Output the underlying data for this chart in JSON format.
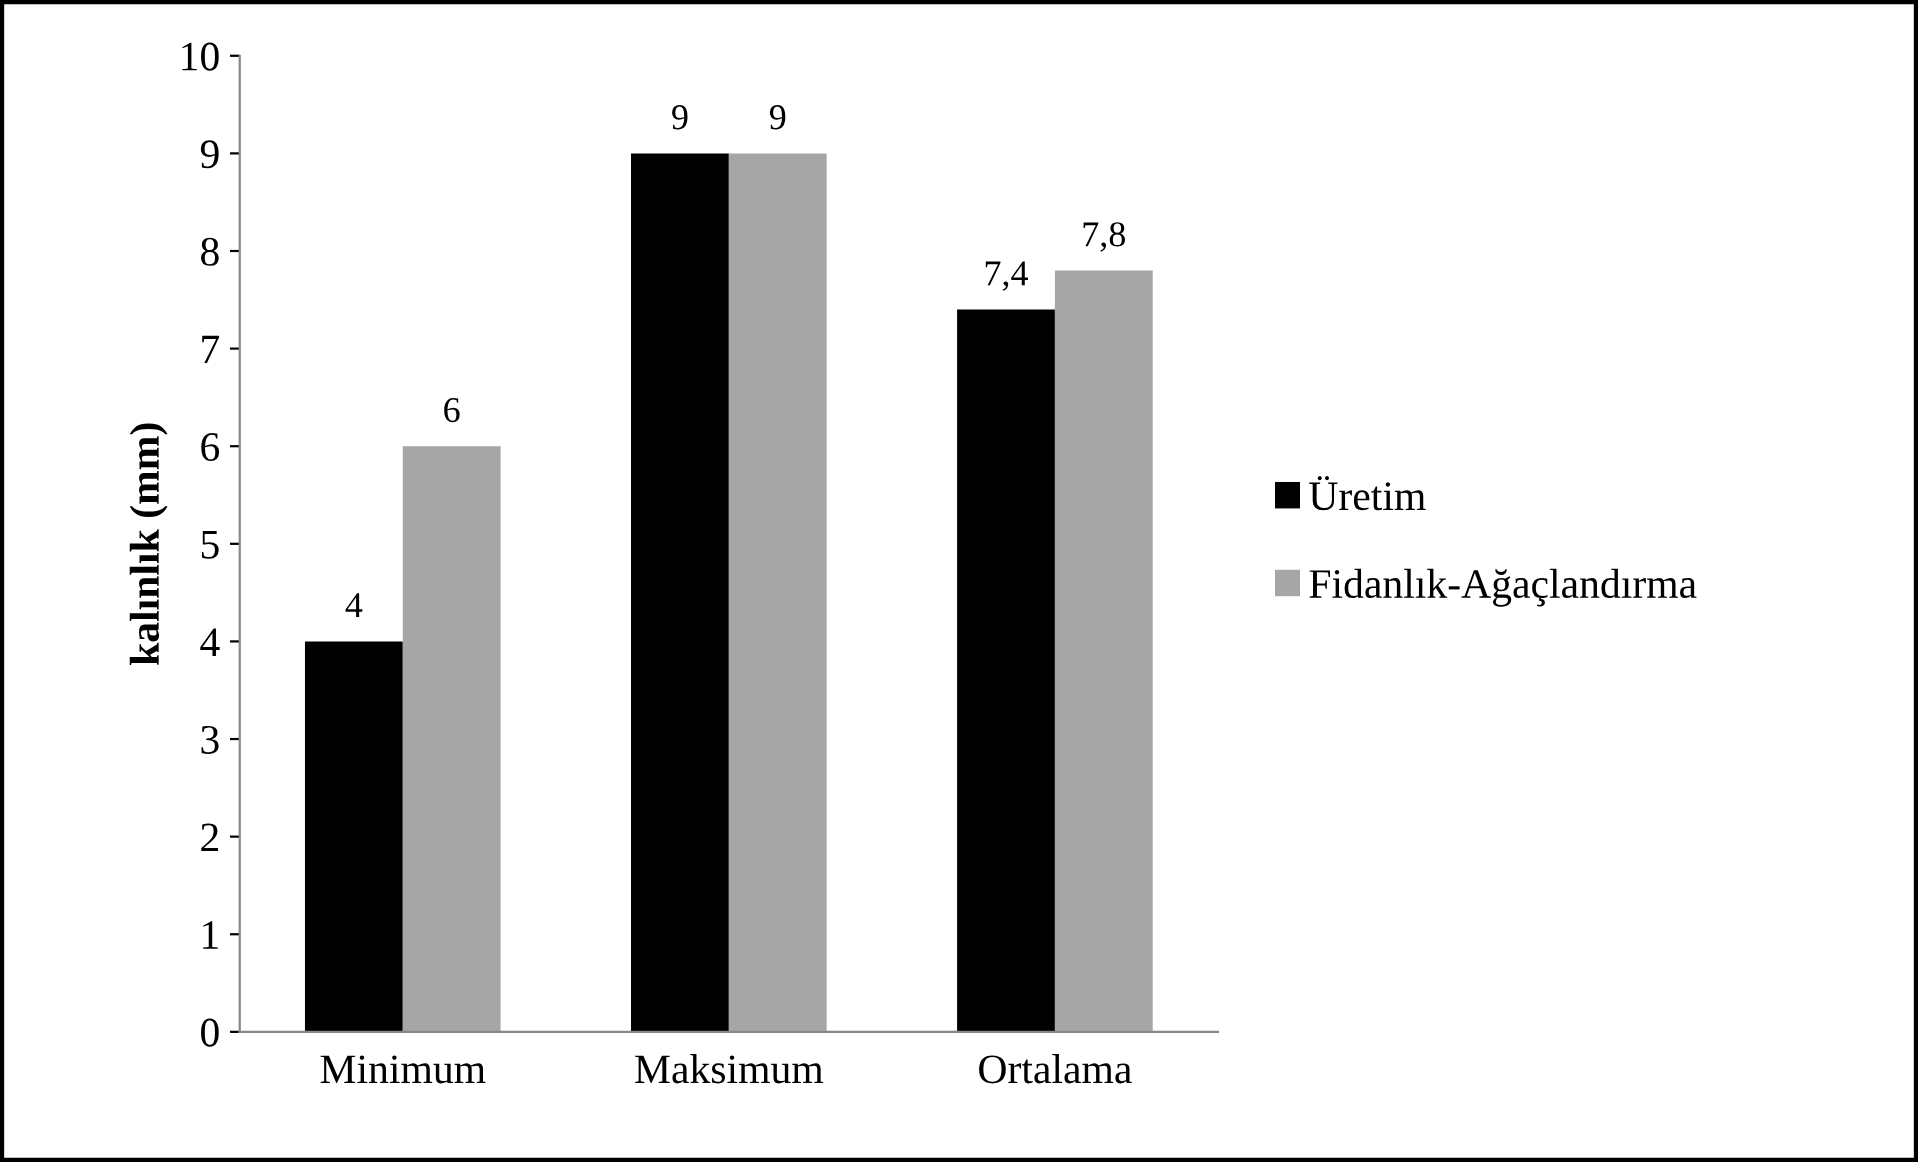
{
  "chart_data": {
    "type": "bar",
    "ylabel": "kalınlık (mm)",
    "categories": [
      "Minimum",
      "Maksimum",
      "Ortalama"
    ],
    "series": [
      {
        "name": "Üretim",
        "color": "#000000",
        "values": [
          4,
          9,
          7.4
        ],
        "value_labels": [
          "4",
          "9",
          "7,4"
        ]
      },
      {
        "name": "Fidanlık-Ağaçlandırma",
        "color": "#a6a6a6",
        "values": [
          6,
          9,
          7.8
        ],
        "value_labels": [
          "6",
          "9",
          "7,8"
        ]
      }
    ],
    "ylim": [
      0,
      10
    ],
    "yticks": [
      0,
      1,
      2,
      3,
      4,
      5,
      6,
      7,
      8,
      9,
      10
    ],
    "grid": false,
    "legend": "right"
  }
}
